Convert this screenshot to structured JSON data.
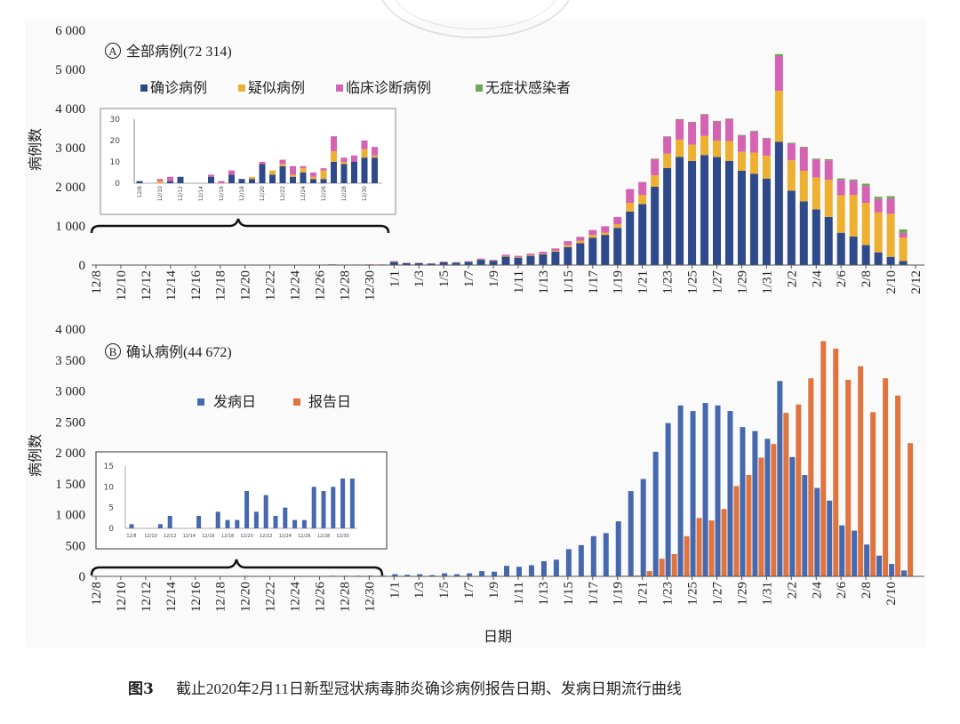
{
  "caption": {
    "label": "图3",
    "text": "截止2020年2月11日新型冠状病毒肺炎确诊病例报告日期、发病日期流行曲线"
  },
  "chart_data": [
    {
      "type": "bar",
      "stacked": true,
      "panel_letter": "A",
      "title": "全部病例(72 314)",
      "ylabel": "病例数",
      "xlabel": "",
      "ylim": [
        0,
        6000
      ],
      "yticks": [
        "0",
        "1 000",
        "2 000",
        "3 000",
        "4 000",
        "5 000",
        "6 000"
      ],
      "xtick_labels": [
        "12/8",
        "12/10",
        "12/12",
        "12/14",
        "12/16",
        "12/18",
        "12/20",
        "12/22",
        "12/24",
        "12/26",
        "12/28",
        "12/30",
        "1/1",
        "1/3",
        "1/5",
        "1/7",
        "1/9",
        "1/11",
        "1/13",
        "1/15",
        "1/17",
        "1/19",
        "1/21",
        "1/23",
        "1/25",
        "1/27",
        "1/29",
        "1/31",
        "2/2",
        "2/4",
        "2/6",
        "2/8",
        "2/10",
        "2/12"
      ],
      "legend_position": "top-left",
      "colors": {
        "confirmed": "#2f4a8a",
        "suspected": "#eeb031",
        "clinical": "#d563b3",
        "asymptomatic": "#6ea657"
      },
      "x_start": "12/8",
      "x_end": "2/11",
      "series": [
        {
          "name": "确诊病例",
          "key": "confirmed",
          "values": [
            1,
            0,
            0,
            1,
            3,
            0,
            0,
            3,
            0,
            4,
            2,
            2,
            9,
            4,
            8,
            3,
            5,
            2,
            2,
            10,
            9,
            10,
            12,
            12,
            80,
            50,
            50,
            38,
            75,
            62,
            82,
            135,
            110,
            215,
            190,
            235,
            275,
            340,
            460,
            560,
            700,
            770,
            950,
            1370,
            1560,
            2000,
            2480,
            2765,
            2660,
            2810,
            2760,
            2660,
            2410,
            2330,
            2210,
            3150,
            1900,
            1630,
            1420,
            1230,
            825,
            730,
            510,
            325,
            210,
            105
          ]
        },
        {
          "name": "疑似病例",
          "key": "suspected",
          "values": [
            0,
            0,
            1,
            0,
            0,
            0,
            0,
            0,
            0,
            0,
            0,
            1,
            0,
            2,
            1,
            1,
            2,
            1,
            4,
            5,
            1,
            0,
            4,
            1,
            5,
            2,
            2,
            2,
            4,
            4,
            5,
            8,
            7,
            15,
            13,
            17,
            20,
            25,
            50,
            60,
            70,
            60,
            90,
            220,
            230,
            295,
            370,
            440,
            415,
            490,
            420,
            510,
            485,
            545,
            585,
            1300,
            775,
            780,
            820,
            945,
            960,
            1060,
            1080,
            1020,
            1100,
            600
          ]
        },
        {
          "name": "临床诊断病例",
          "key": "clinical",
          "values": [
            0,
            0,
            1,
            2,
            0,
            0,
            0,
            1,
            1,
            2,
            0,
            0,
            1,
            0,
            2,
            4,
            1,
            2,
            1,
            7,
            2,
            3,
            4,
            4,
            15,
            8,
            8,
            5,
            11,
            9,
            13,
            22,
            18,
            35,
            32,
            38,
            45,
            60,
            100,
            100,
            125,
            160,
            185,
            350,
            330,
            415,
            430,
            510,
            570,
            545,
            490,
            560,
            415,
            540,
            440,
            890,
            430,
            590,
            460,
            500,
            390,
            365,
            430,
            340,
            390,
            115
          ]
        },
        {
          "name": "无症状感染者",
          "key": "asymptomatic",
          "values": [
            0,
            0,
            0,
            0,
            0,
            0,
            0,
            0,
            0,
            0,
            0,
            0,
            0,
            0,
            0,
            0,
            0,
            0,
            0,
            0,
            0,
            0,
            0,
            0,
            0,
            0,
            0,
            0,
            0,
            0,
            0,
            0,
            0,
            0,
            0,
            0,
            0,
            0,
            0,
            0,
            0,
            0,
            0,
            5,
            5,
            10,
            10,
            15,
            15,
            15,
            15,
            15,
            15,
            15,
            15,
            50,
            20,
            20,
            20,
            30,
            40,
            30,
            60,
            60,
            60,
            90
          ]
        }
      ],
      "inset": {
        "ylim": [
          0,
          30
        ],
        "yticks": [
          "0",
          "10",
          "20",
          "30"
        ],
        "xtick_labels": [
          "12/8",
          "12/10",
          "12/12",
          "12/14",
          "12/16",
          "12/18",
          "12/20",
          "12/22",
          "12/24",
          "12/26",
          "12/28",
          "12/30"
        ],
        "range": "12/8–12/31"
      }
    },
    {
      "type": "bar",
      "panel_letter": "B",
      "title": "确认病例(44 672)",
      "ylabel": "病例数",
      "xlabel": "日期",
      "ylim": [
        0,
        4000
      ],
      "yticks": [
        "0",
        "500",
        "1 000",
        "1 500",
        "2 000",
        "2 500",
        "3 000",
        "3 500",
        "4 000"
      ],
      "xtick_labels": [
        "12/8",
        "12/10",
        "12/12",
        "12/14",
        "12/16",
        "12/18",
        "12/20",
        "12/22",
        "12/24",
        "12/26",
        "12/28",
        "12/30",
        "1/1",
        "1/3",
        "1/5",
        "1/7",
        "1/9",
        "1/11",
        "1/13",
        "1/15",
        "1/17",
        "1/19",
        "1/21",
        "1/23",
        "1/25",
        "1/27",
        "1/29",
        "1/31",
        "2/2",
        "2/4",
        "2/6",
        "2/8",
        "2/10"
      ],
      "legend_position": "top-left",
      "colors": {
        "onset": "#4668ae",
        "report": "#e0743f"
      },
      "x_start": "12/8",
      "x_end": "2/11",
      "series": [
        {
          "name": "发病日",
          "key": "onset",
          "values": [
            1,
            0,
            0,
            1,
            3,
            0,
            0,
            3,
            0,
            4,
            2,
            2,
            9,
            4,
            8,
            3,
            5,
            2,
            2,
            10,
            9,
            10,
            12,
            12,
            35,
            25,
            35,
            20,
            50,
            35,
            50,
            85,
            75,
            170,
            155,
            180,
            245,
            270,
            440,
            505,
            650,
            700,
            890,
            1380,
            1575,
            2015,
            2480,
            2765,
            2675,
            2805,
            2765,
            2675,
            2415,
            2350,
            2225,
            3160,
            1930,
            1640,
            1430,
            1225,
            825,
            740,
            515,
            335,
            200,
            95
          ]
        },
        {
          "name": "报告日",
          "key": "report",
          "values": [
            0,
            0,
            0,
            0,
            0,
            0,
            0,
            0,
            0,
            0,
            0,
            0,
            0,
            0,
            0,
            0,
            0,
            0,
            0,
            0,
            0,
            0,
            0,
            0,
            0,
            0,
            0,
            0,
            0,
            0,
            0,
            0,
            0,
            0,
            0,
            0,
            0,
            0,
            0,
            0,
            0,
            0,
            10,
            15,
            85,
            285,
            360,
            650,
            945,
            905,
            1090,
            1460,
            1640,
            1920,
            2140,
            2645,
            2780,
            3205,
            3805,
            3685,
            3180,
            3400,
            2655,
            3205,
            2925,
            2155
          ]
        }
      ],
      "inset": {
        "ylim": [
          0,
          15
        ],
        "yticks": [
          "0",
          "5",
          "10",
          "15"
        ],
        "xtick_labels": [
          "12/8",
          "12/10",
          "12/12",
          "12/14",
          "12/16",
          "12/18",
          "12/20",
          "12/22",
          "12/24",
          "12/26",
          "12/28",
          "12/30"
        ],
        "range": "12/8–12/31"
      }
    }
  ]
}
